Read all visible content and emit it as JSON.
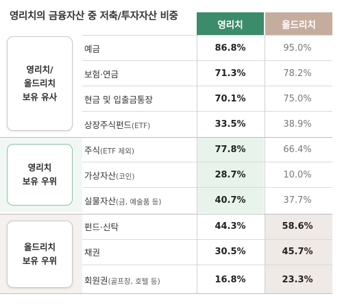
{
  "title": "영리치의 금융자산 중 저축/투자자산 비중",
  "columns": {
    "young": "영리치",
    "old": "올드리치"
  },
  "colors": {
    "young_header": "#3c8c6b",
    "old_header": "#c5ad9e",
    "young_highlight": "#e8f3ec",
    "old_highlight": "#efeae6"
  },
  "groups": [
    {
      "label": "영리치/\n올드리치\n보유 유사"
    },
    {
      "label": "영리치\n보유 우위"
    },
    {
      "label": "올드리치\n보유 우위"
    }
  ],
  "rows": [
    {
      "name": "예금",
      "sub": "",
      "young": "86.8%",
      "old": "95.0%"
    },
    {
      "name": "보험·연금",
      "sub": "",
      "young": "71.3%",
      "old": "78.2%"
    },
    {
      "name": "현금 및 입출금통장",
      "sub": "",
      "young": "70.1%",
      "old": "75.0%"
    },
    {
      "name": "상장주식펀드",
      "sub": "(ETF)",
      "young": "33.5%",
      "old": "38.9%"
    },
    {
      "name": "주식",
      "sub": "(ETF 제외)",
      "young": "77.8%",
      "old": "66.4%"
    },
    {
      "name": "가상자산",
      "sub": "(코인)",
      "young": "28.7%",
      "old": "10.0%"
    },
    {
      "name": "실물자산",
      "sub": "(금, 예술품 등)",
      "young": "40.7%",
      "old": "37.7%"
    },
    {
      "name": "펀드·신탁",
      "sub": "",
      "young": "44.3%",
      "old": "58.6%"
    },
    {
      "name": "채권",
      "sub": "",
      "young": "30.5%",
      "old": "45.7%"
    },
    {
      "name": "회원권",
      "sub": "(골프장, 호텔 등)",
      "young": "16.8%",
      "old": "23.3%"
    }
  ]
}
